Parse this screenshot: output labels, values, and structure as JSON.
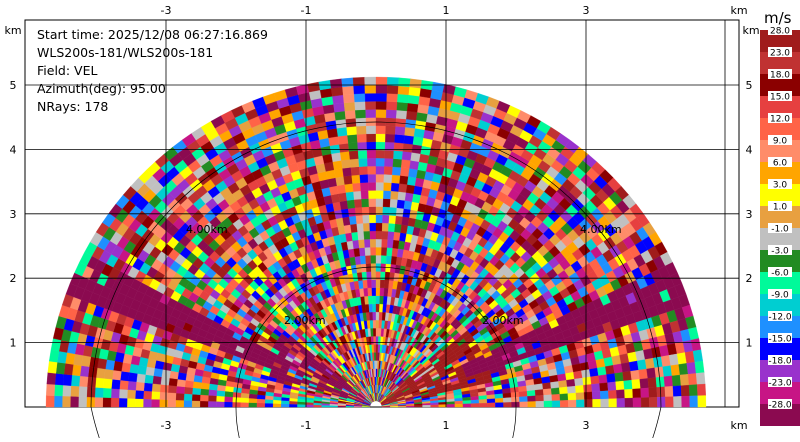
{
  "info": {
    "start_time": "Start time: 2025/12/08 06:27:16.869",
    "site": "WLS200s-181/WLS200s-181",
    "field": "Field: VEL",
    "azimuth": "Azimuth(deg): 95.00",
    "nrays": "NRays: 178"
  },
  "axes": {
    "unit": "km",
    "x_ticks": [
      "-3",
      "-1",
      "1",
      "3"
    ],
    "y_ticks": [
      "1",
      "2",
      "3",
      "4",
      "5"
    ]
  },
  "range_rings": [
    "2.00km",
    "2.00km",
    "4.00km",
    "4.00km"
  ],
  "colorbar": {
    "unit": "m/s",
    "labels": [
      "28.0",
      "23.0",
      "18.0",
      "15.0",
      "12.0",
      "9.0",
      "6.0",
      "3.0",
      "1.0",
      "-1.0",
      "-3.0",
      "-6.0",
      "-9.0",
      "-12.0",
      "-15.0",
      "-18.0",
      "-23.0",
      "-28.0"
    ],
    "colors": [
      "#a01c1c",
      "#c03232",
      "#8b0000",
      "#e64040",
      "#ff6347",
      "#ff8c69",
      "#ffa500",
      "#ffff00",
      "#e8a040",
      "#c0c0c0",
      "#228b22",
      "#00fa9a",
      "#00ced1",
      "#1e90ff",
      "#0000ff",
      "#9932cc",
      "#c71585",
      "#8b0a50"
    ]
  }
}
